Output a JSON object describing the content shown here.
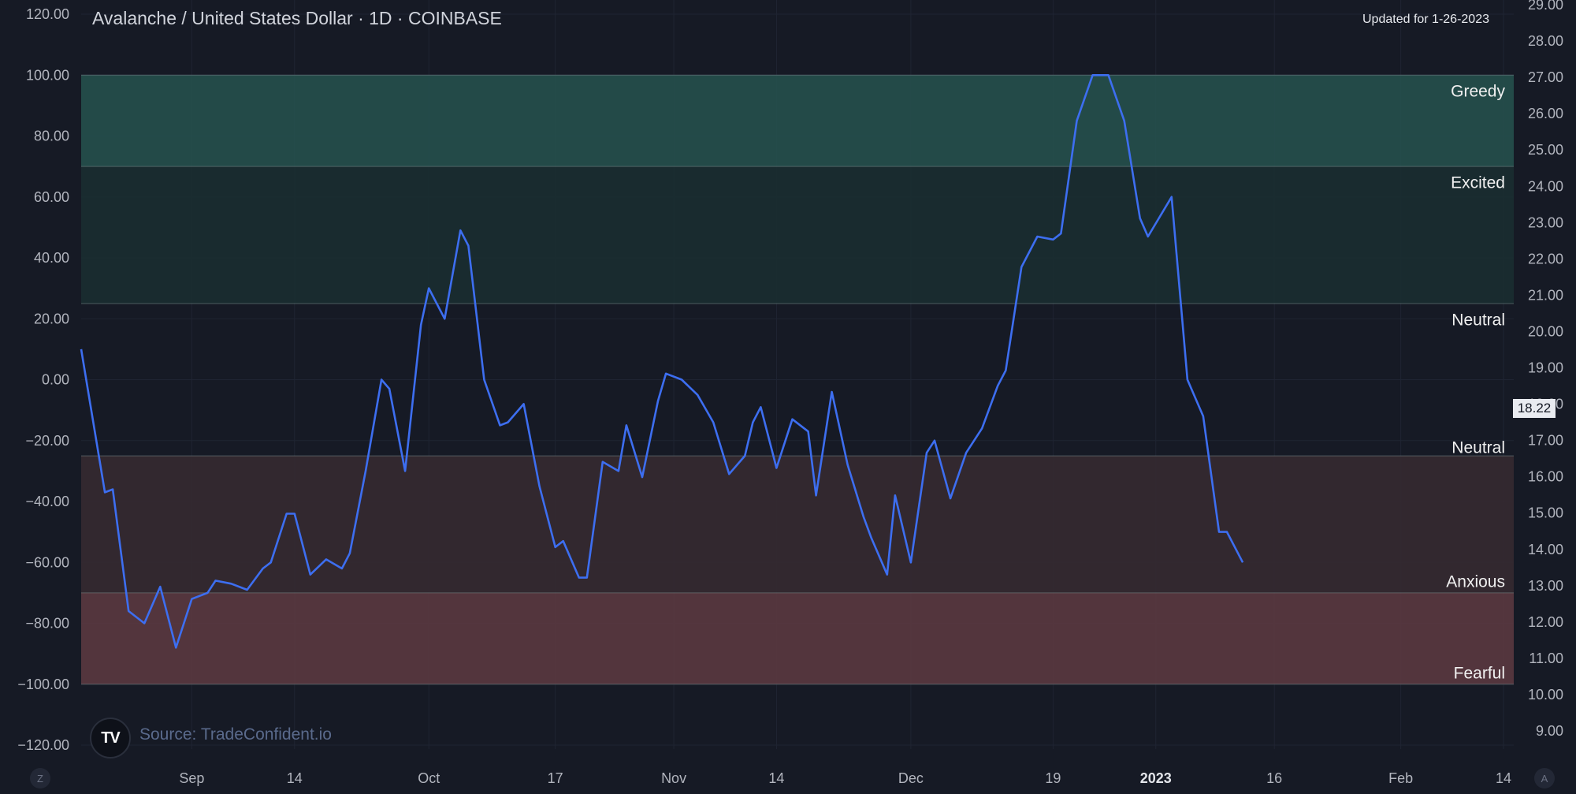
{
  "header": {
    "title": "Avalanche / United States Dollar · 1D · COINBASE",
    "updated": "Updated for 1-26-2023"
  },
  "source": "Source: TradeConfident.io",
  "logo_text": "TV",
  "corner_buttons": {
    "left": "Z",
    "right": "A"
  },
  "last_price_label": "18.22",
  "colors": {
    "background": "#161a25",
    "sentiment_line": "#3d6ef0",
    "price_line": "#e6e6ea",
    "greedy_zone": "#25504c",
    "excited_zone": "#1a2e31",
    "anxious_zone": "#352a31",
    "fearful_zone": "#5a3840"
  },
  "chart_data": {
    "type": "line",
    "title": "Avalanche / United States Dollar · 1D · COINBASE",
    "x_tick_labels": [
      "Sep",
      "14",
      "Oct",
      "17",
      "Nov",
      "14",
      "Dec",
      "19",
      "2023",
      "16",
      "Feb",
      "14"
    ],
    "x_tick_dates": [
      "2022-09-01",
      "2022-09-14",
      "2022-10-01",
      "2022-10-17",
      "2022-11-01",
      "2022-11-14",
      "2022-12-01",
      "2022-12-19",
      "2023-01-01",
      "2023-01-16",
      "2023-02-01",
      "2023-02-14"
    ],
    "x_range": [
      "2022-08-18",
      "2023-02-14"
    ],
    "left_axis": {
      "ticks": [
        "120.00",
        "100.00",
        "80.00",
        "60.00",
        "40.00",
        "20.00",
        "0.00",
        "−20.00",
        "−40.00",
        "−60.00",
        "−80.00",
        "−100.00",
        "−120.00"
      ],
      "ylim": [
        -120,
        120
      ]
    },
    "right_axis": {
      "ticks": [
        "29.00",
        "28.00",
        "27.00",
        "26.00",
        "25.00",
        "24.00",
        "23.00",
        "22.00",
        "21.00",
        "20.00",
        "19.00",
        "18.00",
        "17.00",
        "16.00",
        "15.00",
        "14.00",
        "13.00",
        "12.00",
        "11.00",
        "10.00",
        "9.00"
      ],
      "ylim": [
        9,
        29
      ]
    },
    "zones": [
      {
        "label": "Greedy",
        "from": 70,
        "to": 100
      },
      {
        "label": "Excited",
        "from": 25,
        "to": 70
      },
      {
        "label": "Neutral",
        "from": -25,
        "to": 25
      },
      {
        "label": "Anxious",
        "from": -70,
        "to": -25
      },
      {
        "label": "Fearful",
        "from": -100,
        "to": -70
      }
    ],
    "zone_labels": [
      {
        "text": "Greedy",
        "value": 95
      },
      {
        "text": "Excited",
        "value": 65
      },
      {
        "text": "Neutral",
        "value": 20
      },
      {
        "text": "Neutral",
        "value": -22
      },
      {
        "text": "Anxious",
        "value": -66
      },
      {
        "text": "Fearful",
        "value": -96
      }
    ],
    "series": [
      {
        "axis": "left",
        "color": "#3d6ef0",
        "points": [
          [
            "2022-08-18",
            10
          ],
          [
            "2022-08-21",
            -37
          ],
          [
            "2022-08-22",
            -36
          ],
          [
            "2022-08-24",
            -76
          ],
          [
            "2022-08-26",
            -80
          ],
          [
            "2022-08-28",
            -68
          ],
          [
            "2022-08-30",
            -88
          ],
          [
            "2022-09-01",
            -72
          ],
          [
            "2022-09-03",
            -70
          ],
          [
            "2022-09-04",
            -66
          ],
          [
            "2022-09-06",
            -67
          ],
          [
            "2022-09-08",
            -69
          ],
          [
            "2022-09-10",
            -62
          ],
          [
            "2022-09-11",
            -60
          ],
          [
            "2022-09-13",
            -44
          ],
          [
            "2022-09-14",
            -44
          ],
          [
            "2022-09-16",
            -64
          ],
          [
            "2022-09-18",
            -59
          ],
          [
            "2022-09-20",
            -62
          ],
          [
            "2022-09-21",
            -57
          ],
          [
            "2022-09-23",
            -30
          ],
          [
            "2022-09-25",
            0
          ],
          [
            "2022-09-26",
            -3
          ],
          [
            "2022-09-28",
            -30
          ],
          [
            "2022-09-30",
            18
          ],
          [
            "2022-10-01",
            30
          ],
          [
            "2022-10-03",
            20
          ],
          [
            "2022-10-05",
            49
          ],
          [
            "2022-10-06",
            44
          ],
          [
            "2022-10-08",
            0
          ],
          [
            "2022-10-10",
            -15
          ],
          [
            "2022-10-11",
            -14
          ],
          [
            "2022-10-13",
            -8
          ],
          [
            "2022-10-15",
            -35
          ],
          [
            "2022-10-17",
            -55
          ],
          [
            "2022-10-18",
            -53
          ],
          [
            "2022-10-20",
            -65
          ],
          [
            "2022-10-21",
            -65
          ],
          [
            "2022-10-23",
            -27
          ],
          [
            "2022-10-25",
            -30
          ],
          [
            "2022-10-26",
            -15
          ],
          [
            "2022-10-28",
            -32
          ],
          [
            "2022-10-30",
            -7
          ],
          [
            "2022-10-31",
            2
          ],
          [
            "2022-11-02",
            0
          ],
          [
            "2022-11-04",
            -5
          ],
          [
            "2022-11-06",
            -14
          ],
          [
            "2022-11-08",
            -31
          ],
          [
            "2022-11-10",
            -25
          ],
          [
            "2022-11-11",
            -14
          ],
          [
            "2022-11-12",
            -9
          ],
          [
            "2022-11-14",
            -29
          ],
          [
            "2022-11-16",
            -13
          ],
          [
            "2022-11-18",
            -17
          ],
          [
            "2022-11-19",
            -38
          ],
          [
            "2022-11-21",
            -4
          ],
          [
            "2022-11-23",
            -28
          ],
          [
            "2022-11-25",
            -45
          ],
          [
            "2022-11-26",
            -52
          ],
          [
            "2022-11-28",
            -64
          ],
          [
            "2022-11-29",
            -38
          ],
          [
            "2022-12-01",
            -60
          ],
          [
            "2022-12-03",
            -24
          ],
          [
            "2022-12-04",
            -20
          ],
          [
            "2022-12-06",
            -39
          ],
          [
            "2022-12-08",
            -24
          ],
          [
            "2022-12-10",
            -16
          ],
          [
            "2022-12-12",
            -2
          ],
          [
            "2022-12-13",
            3
          ],
          [
            "2022-12-15",
            37
          ],
          [
            "2022-12-17",
            47
          ],
          [
            "2022-12-19",
            46
          ],
          [
            "2022-12-20",
            48
          ],
          [
            "2022-12-22",
            85
          ],
          [
            "2022-12-24",
            100
          ],
          [
            "2022-12-26",
            100
          ],
          [
            "2022-12-28",
            85
          ],
          [
            "2022-12-30",
            53
          ],
          [
            "2022-12-31",
            47
          ],
          [
            "2023-01-03",
            60
          ],
          [
            "2023-01-05",
            0
          ],
          [
            "2023-01-07",
            -12
          ],
          [
            "2023-01-09",
            -50
          ],
          [
            "2023-01-10",
            -50
          ],
          [
            "2023-01-12",
            -60
          ]
        ]
      }
    ]
  }
}
